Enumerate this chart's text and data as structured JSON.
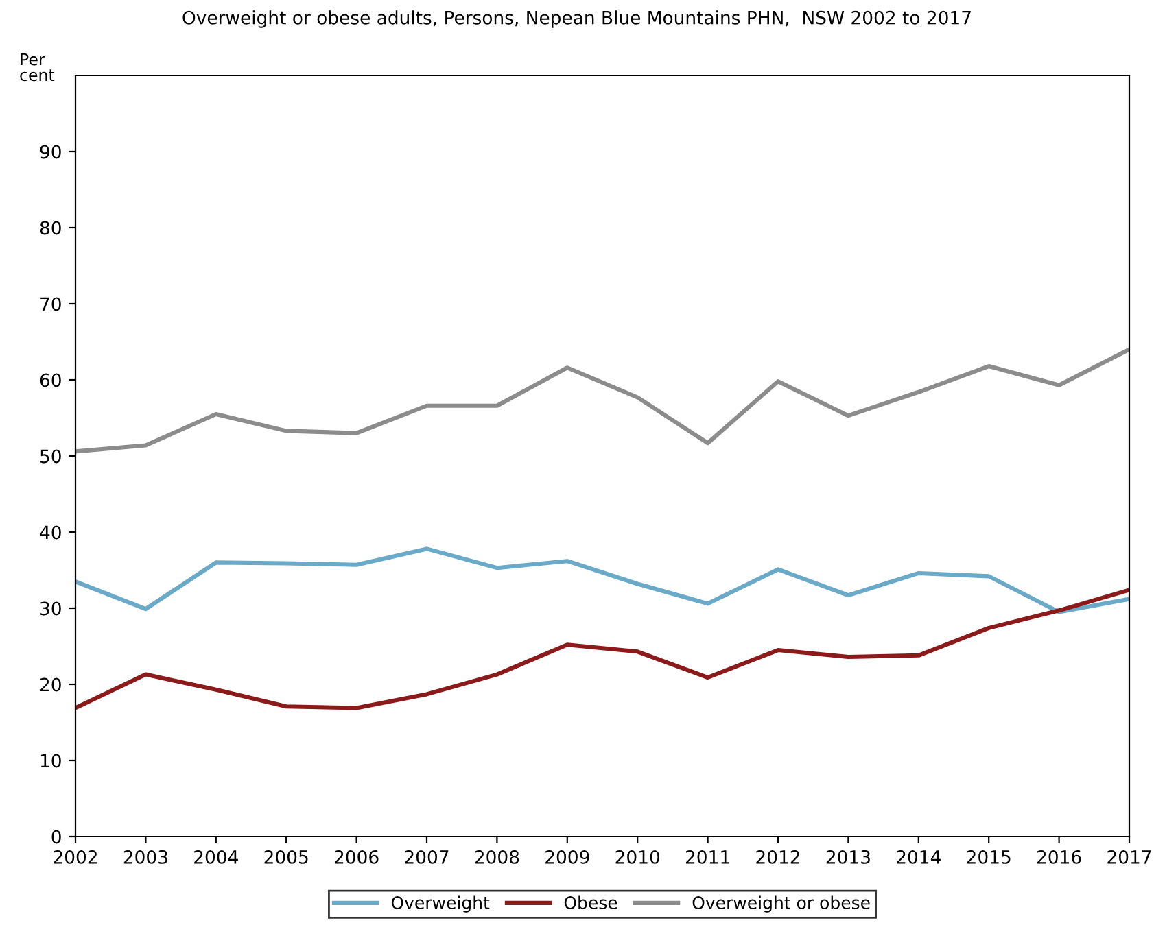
{
  "chart_data": {
    "type": "line",
    "title": "Overweight or obese adults, Persons, Nepean Blue Mountains PHN,  NSW 2002 to 2017",
    "ylabel": "Per\ncent",
    "x": [
      2002,
      2003,
      2004,
      2005,
      2006,
      2007,
      2008,
      2009,
      2010,
      2011,
      2012,
      2013,
      2014,
      2015,
      2016,
      2017
    ],
    "series": [
      {
        "name": "Overweight",
        "color": "#6aaac8",
        "values": [
          33.5,
          29.9,
          36.0,
          35.9,
          35.7,
          37.8,
          35.3,
          36.2,
          33.2,
          30.6,
          35.1,
          31.7,
          34.6,
          34.2,
          29.5,
          31.2
        ]
      },
      {
        "name": "Obese",
        "color": "#8b1a1a",
        "values": [
          16.9,
          21.3,
          19.3,
          17.1,
          16.9,
          18.7,
          21.3,
          25.2,
          24.3,
          20.9,
          24.5,
          23.6,
          23.8,
          27.4,
          29.7,
          32.4
        ]
      },
      {
        "name": "Overweight or obese",
        "color": "#8c8c8c",
        "values": [
          50.6,
          51.4,
          55.5,
          53.3,
          53.0,
          56.6,
          56.6,
          61.6,
          57.7,
          51.7,
          59.8,
          55.3,
          58.4,
          61.8,
          59.3,
          64.0
        ]
      }
    ],
    "xlim": [
      2002,
      2017
    ],
    "xticks": [
      2002,
      2003,
      2004,
      2005,
      2006,
      2007,
      2008,
      2009,
      2010,
      2011,
      2012,
      2013,
      2014,
      2015,
      2016,
      2017
    ],
    "ylim": [
      0,
      100
    ],
    "yticks": [
      0,
      10,
      20,
      30,
      40,
      50,
      60,
      70,
      80,
      90
    ],
    "grid": false,
    "legend": "bottom",
    "marker": "none",
    "line_style": "solid"
  }
}
